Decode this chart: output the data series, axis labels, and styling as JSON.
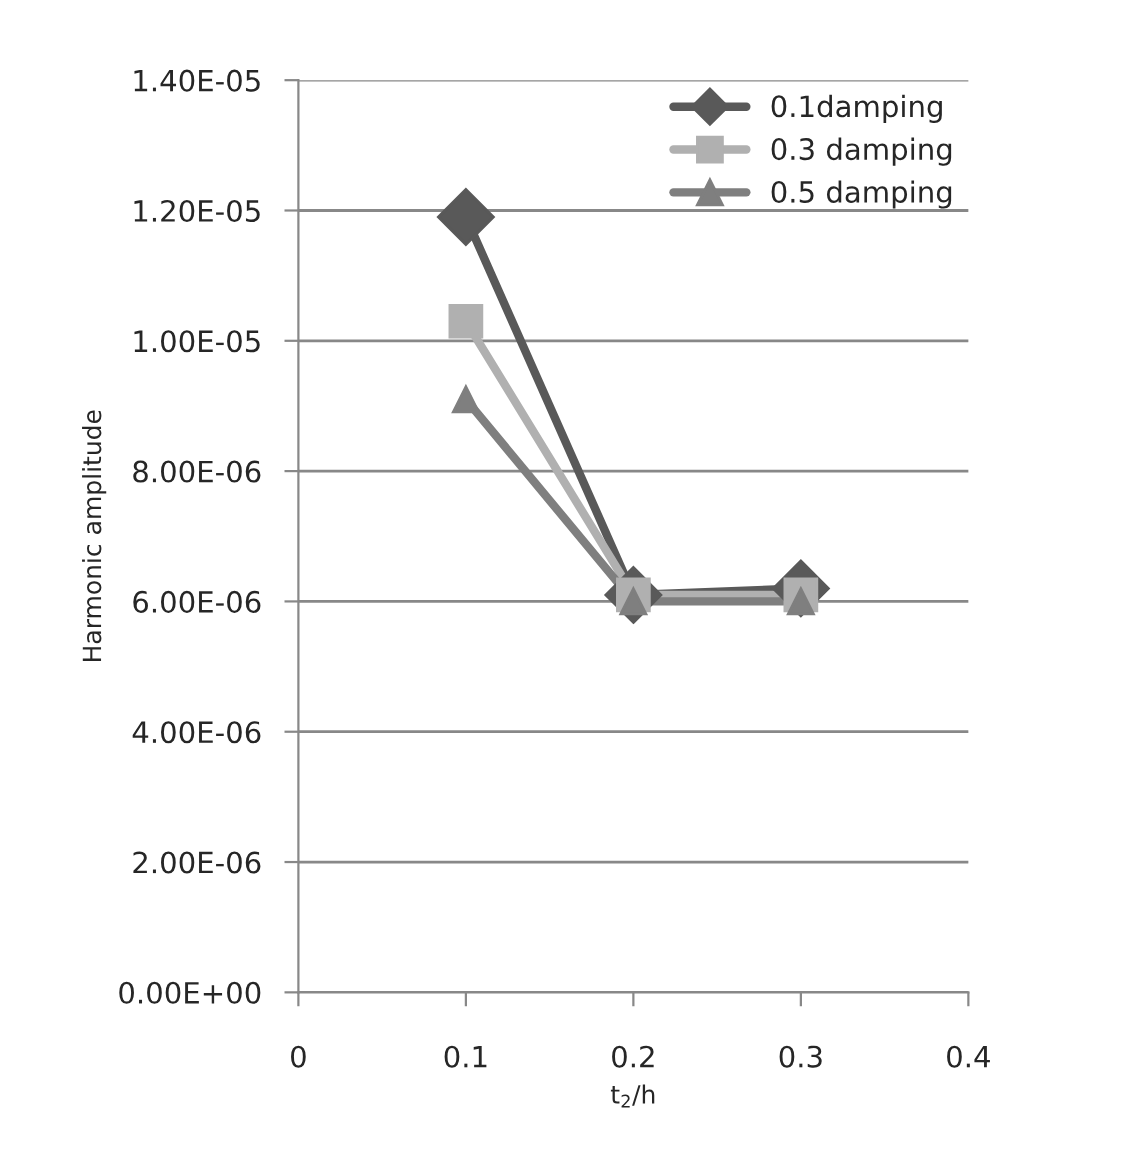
{
  "chart_data": {
    "type": "line",
    "xlabel": "t$_{2}$/h",
    "ylabel": "Harmonic amplitude",
    "x": [
      0.1,
      0.2,
      0.3
    ],
    "series": [
      {
        "name": "0.1damping",
        "color": "#595959",
        "marker": "diamond",
        "values": [
          1.19e-05,
          6.1e-06,
          6.2e-06
        ]
      },
      {
        "name": "0.3 damping",
        "color": "#b0b0b0",
        "marker": "square",
        "values": [
          1.03e-05,
          6.1e-06,
          6.1e-06
        ]
      },
      {
        "name": "0.5 damping",
        "color": "#7f7f7f",
        "marker": "triangle",
        "values": [
          9.1e-06,
          6e-06,
          6e-06
        ]
      }
    ],
    "xlim": [
      0,
      0.4
    ],
    "xticks": [
      0,
      0.1,
      0.2,
      0.3,
      0.4
    ],
    "ylim": [
      0,
      1.4e-05
    ],
    "yticks": [
      {
        "value": 0,
        "label": "0.00E+00"
      },
      {
        "value": 2e-06,
        "label": "2.00E-06"
      },
      {
        "value": 4e-06,
        "label": "4.00E-06"
      },
      {
        "value": 6e-06,
        "label": "6.00E-06"
      },
      {
        "value": 8e-06,
        "label": "8.00E-06"
      },
      {
        "value": 1e-05,
        "label": "1.00E-05"
      },
      {
        "value": 1.2e-05,
        "label": "1.20E-05"
      },
      {
        "value": 1.4e-05,
        "label": "1.40E-05"
      }
    ],
    "grid": "y",
    "legend": "top right",
    "line_style": "solid"
  }
}
